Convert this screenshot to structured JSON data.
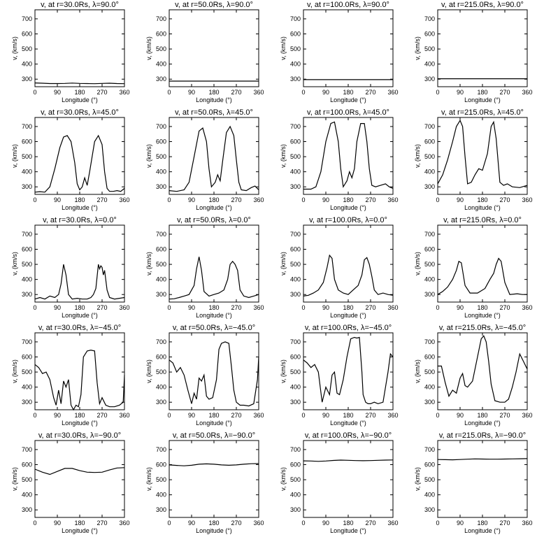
{
  "chart_data": [
    {
      "type": "line",
      "title": "v, at r=30.0Rs, λ=90.0°",
      "xlabel": "Longitude (°)",
      "ylabel": "v, (km/s)",
      "xlim": [
        0,
        360
      ],
      "ylim": [
        250,
        760
      ],
      "xticks": [
        0,
        90,
        180,
        270,
        360
      ],
      "yticks": [
        300,
        400,
        500,
        600,
        700
      ],
      "x": [
        0,
        30,
        60,
        90,
        120,
        150,
        180,
        210,
        240,
        270,
        300,
        330,
        360
      ],
      "y": [
        275,
        273,
        271,
        271,
        272,
        274,
        272,
        271,
        270,
        272,
        273,
        271,
        270
      ]
    },
    {
      "type": "line",
      "title": "v, at r=50.0Rs, λ=90.0°",
      "xlabel": "Longitude (°)",
      "ylabel": "v, (km/s)",
      "xlim": [
        0,
        360
      ],
      "ylim": [
        250,
        760
      ],
      "xticks": [
        0,
        90,
        180,
        270,
        360
      ],
      "yticks": [
        300,
        400,
        500,
        600,
        700
      ],
      "x": [
        0,
        90,
        180,
        270,
        360
      ],
      "y": [
        287,
        287,
        287,
        287,
        287
      ]
    },
    {
      "type": "line",
      "title": "v, at r=100.0Rs, λ=90.0°",
      "xlabel": "Longitude (°)",
      "ylabel": "v, (km/s)",
      "xlim": [
        0,
        360
      ],
      "ylim": [
        250,
        760
      ],
      "xticks": [
        0,
        90,
        180,
        270,
        360
      ],
      "yticks": [
        300,
        400,
        500,
        600,
        700
      ],
      "x": [
        0,
        90,
        180,
        270,
        360
      ],
      "y": [
        297,
        297,
        297,
        297,
        297
      ]
    },
    {
      "type": "line",
      "title": "v, at r=215.0Rs, λ=90.0°",
      "xlabel": "Longitude (°)",
      "ylabel": "v, (km/s)",
      "xlim": [
        0,
        360
      ],
      "ylim": [
        250,
        760
      ],
      "xticks": [
        0,
        90,
        180,
        270,
        360
      ],
      "yticks": [
        300,
        400,
        500,
        600,
        700
      ],
      "x": [
        0,
        90,
        180,
        270,
        360
      ],
      "y": [
        303,
        303,
        303,
        303,
        303
      ]
    },
    {
      "type": "line",
      "title": "v, at r=30.0Rs, λ=45.0°",
      "xlabel": "Longitude (°)",
      "ylabel": "v, (km/s)",
      "xlim": [
        0,
        360
      ],
      "ylim": [
        250,
        760
      ],
      "xticks": [
        0,
        90,
        180,
        270,
        360
      ],
      "yticks": [
        300,
        400,
        500,
        600,
        700
      ],
      "x": [
        0,
        20,
        40,
        60,
        80,
        100,
        115,
        130,
        145,
        160,
        170,
        180,
        190,
        200,
        210,
        220,
        240,
        255,
        270,
        280,
        290,
        300,
        315,
        330,
        345,
        360
      ],
      "y": [
        265,
        268,
        265,
        300,
        420,
        560,
        630,
        640,
        600,
        460,
        320,
        280,
        300,
        360,
        310,
        400,
        600,
        640,
        580,
        400,
        290,
        270,
        270,
        275,
        270,
        290
      ]
    },
    {
      "type": "line",
      "title": "v, at r=50.0Rs, λ=45.0°",
      "xlabel": "Longitude (°)",
      "ylabel": "v, (km/s)",
      "xlim": [
        0,
        360
      ],
      "ylim": [
        250,
        760
      ],
      "xticks": [
        0,
        90,
        180,
        270,
        360
      ],
      "yticks": [
        300,
        400,
        500,
        600,
        700
      ],
      "x": [
        0,
        30,
        60,
        80,
        100,
        120,
        135,
        150,
        160,
        170,
        185,
        195,
        205,
        215,
        230,
        245,
        260,
        270,
        280,
        290,
        310,
        330,
        345,
        360
      ],
      "y": [
        275,
        270,
        280,
        330,
        500,
        670,
        690,
        600,
        420,
        300,
        330,
        380,
        340,
        470,
        660,
        700,
        640,
        480,
        330,
        280,
        275,
        295,
        305,
        280
      ]
    },
    {
      "type": "line",
      "title": "v, at r=100.0Rs, λ=45.0°",
      "xlabel": "Longitude (°)",
      "ylabel": "v, (km/s)",
      "xlim": [
        0,
        360
      ],
      "ylim": [
        250,
        760
      ],
      "xticks": [
        0,
        90,
        180,
        270,
        360
      ],
      "yticks": [
        300,
        400,
        500,
        600,
        700
      ],
      "x": [
        0,
        30,
        50,
        70,
        90,
        110,
        125,
        140,
        150,
        160,
        175,
        185,
        195,
        205,
        215,
        230,
        245,
        255,
        265,
        275,
        290,
        310,
        330,
        345,
        360
      ],
      "y": [
        285,
        285,
        300,
        400,
        600,
        720,
        730,
        600,
        420,
        300,
        340,
        400,
        360,
        420,
        600,
        720,
        720,
        600,
        420,
        310,
        300,
        310,
        320,
        300,
        290
      ]
    },
    {
      "type": "line",
      "title": "v, at r=215.0Rs, λ=45.0°",
      "xlabel": "Longitude (°)",
      "ylabel": "v, (km/s)",
      "xlim": [
        0,
        360
      ],
      "ylim": [
        250,
        760
      ],
      "xticks": [
        0,
        90,
        180,
        270,
        360
      ],
      "yticks": [
        300,
        400,
        500,
        600,
        700
      ],
      "x": [
        0,
        20,
        40,
        60,
        75,
        90,
        100,
        110,
        120,
        135,
        150,
        165,
        180,
        200,
        215,
        225,
        235,
        250,
        265,
        280,
        300,
        330,
        360
      ],
      "y": [
        320,
        380,
        480,
        600,
        700,
        740,
        700,
        500,
        320,
        330,
        380,
        420,
        410,
        520,
        700,
        730,
        620,
        330,
        310,
        320,
        300,
        295,
        310
      ]
    },
    {
      "type": "line",
      "title": "v, at r=30.0Rs, λ=0.0°",
      "xlabel": "Longitude (°)",
      "ylabel": "v, (km/s)",
      "xlim": [
        0,
        360
      ],
      "ylim": [
        250,
        760
      ],
      "xticks": [
        0,
        90,
        180,
        270,
        360
      ],
      "yticks": [
        300,
        400,
        500,
        600,
        700
      ],
      "x": [
        0,
        20,
        40,
        60,
        80,
        95,
        105,
        115,
        125,
        135,
        150,
        170,
        190,
        210,
        225,
        235,
        245,
        250,
        255,
        260,
        265,
        270,
        275,
        280,
        290,
        300,
        320,
        340,
        360
      ],
      "y": [
        270,
        280,
        270,
        290,
        280,
        300,
        370,
        500,
        430,
        300,
        270,
        275,
        270,
        270,
        280,
        300,
        340,
        420,
        500,
        470,
        490,
        480,
        430,
        460,
        330,
        280,
        270,
        275,
        280
      ]
    },
    {
      "type": "line",
      "title": "v, at r=50.0Rs, λ=0.0°",
      "xlabel": "Longitude (°)",
      "ylabel": "v, (km/s)",
      "xlim": [
        0,
        360
      ],
      "ylim": [
        250,
        760
      ],
      "xticks": [
        0,
        90,
        180,
        270,
        360
      ],
      "yticks": [
        300,
        400,
        500,
        600,
        700
      ],
      "x": [
        0,
        20,
        40,
        60,
        80,
        100,
        110,
        120,
        130,
        140,
        160,
        180,
        200,
        220,
        235,
        245,
        255,
        265,
        275,
        285,
        300,
        320,
        340,
        360
      ],
      "y": [
        270,
        272,
        280,
        290,
        300,
        360,
        470,
        550,
        460,
        320,
        290,
        300,
        310,
        330,
        400,
        500,
        520,
        500,
        460,
        330,
        290,
        280,
        290,
        300
      ]
    },
    {
      "type": "line",
      "title": "v, at r=100.0Rs, λ=0.0°",
      "xlabel": "Longitude (°)",
      "ylabel": "v, (km/s)",
      "xlim": [
        0,
        360
      ],
      "ylim": [
        250,
        760
      ],
      "xticks": [
        0,
        90,
        180,
        270,
        360
      ],
      "yticks": [
        300,
        400,
        500,
        600,
        700
      ],
      "x": [
        0,
        20,
        40,
        60,
        80,
        95,
        105,
        115,
        125,
        140,
        160,
        180,
        200,
        220,
        235,
        245,
        255,
        265,
        275,
        285,
        300,
        320,
        340,
        360
      ],
      "y": [
        290,
        295,
        310,
        330,
        380,
        480,
        560,
        540,
        400,
        330,
        310,
        300,
        330,
        360,
        430,
        530,
        545,
        500,
        420,
        330,
        300,
        310,
        300,
        295
      ]
    },
    {
      "type": "line",
      "title": "v, at r=215.0Rs, λ=0.0°",
      "xlabel": "Longitude (°)",
      "ylabel": "v, (km/s)",
      "xlim": [
        0,
        360
      ],
      "ylim": [
        250,
        760
      ],
      "xticks": [
        0,
        90,
        180,
        270,
        360
      ],
      "yticks": [
        300,
        400,
        500,
        600,
        700
      ],
      "x": [
        0,
        20,
        40,
        60,
        75,
        85,
        95,
        110,
        130,
        160,
        190,
        210,
        225,
        235,
        245,
        255,
        270,
        290,
        320,
        340,
        360
      ],
      "y": [
        300,
        320,
        350,
        400,
        460,
        520,
        510,
        360,
        310,
        310,
        340,
        400,
        440,
        500,
        540,
        520,
        380,
        300,
        305,
        300,
        300
      ]
    },
    {
      "type": "line",
      "title": "v, at r=30.0Rs, λ=−45.0°",
      "xlabel": "Longitude (°)",
      "ylabel": "v, (km/s)",
      "xlim": [
        0,
        360
      ],
      "ylim": [
        250,
        760
      ],
      "xticks": [
        0,
        90,
        180,
        270,
        360
      ],
      "yticks": [
        300,
        400,
        500,
        600,
        700
      ],
      "x": [
        0,
        15,
        30,
        45,
        60,
        75,
        85,
        95,
        105,
        115,
        125,
        135,
        145,
        155,
        165,
        175,
        185,
        195,
        210,
        225,
        240,
        250,
        260,
        270,
        285,
        300,
        320,
        340,
        355,
        360
      ],
      "y": [
        550,
        530,
        490,
        500,
        450,
        330,
        280,
        380,
        290,
        440,
        400,
        450,
        280,
        250,
        280,
        270,
        350,
        600,
        640,
        645,
        640,
        430,
        290,
        330,
        280,
        270,
        270,
        280,
        300,
        480
      ]
    },
    {
      "type": "line",
      "title": "v, at r=50.0Rs, λ=−45.0°",
      "xlabel": "Longitude (°)",
      "ylabel": "v, (km/s)",
      "xlim": [
        0,
        360
      ],
      "ylim": [
        250,
        760
      ],
      "xticks": [
        0,
        90,
        180,
        270,
        360
      ],
      "yticks": [
        300,
        400,
        500,
        600,
        700
      ],
      "x": [
        0,
        15,
        30,
        45,
        60,
        75,
        90,
        100,
        110,
        120,
        130,
        140,
        150,
        160,
        175,
        190,
        200,
        210,
        225,
        240,
        250,
        260,
        270,
        285,
        300,
        320,
        340,
        355,
        360
      ],
      "y": [
        580,
        560,
        500,
        530,
        480,
        380,
        290,
        360,
        320,
        460,
        440,
        480,
        340,
        320,
        330,
        450,
        650,
        690,
        700,
        690,
        540,
        380,
        300,
        280,
        280,
        275,
        290,
        450,
        600
      ]
    },
    {
      "type": "line",
      "title": "v, at r=100.0Rs, λ=−45.0°",
      "xlabel": "Longitude (°)",
      "ylabel": "v, (km/s)",
      "xlim": [
        0,
        360
      ],
      "ylim": [
        250,
        760
      ],
      "xticks": [
        0,
        90,
        180,
        270,
        360
      ],
      "yticks": [
        300,
        400,
        500,
        600,
        700
      ],
      "x": [
        0,
        15,
        30,
        45,
        60,
        75,
        90,
        105,
        115,
        125,
        135,
        145,
        160,
        175,
        190,
        205,
        215,
        225,
        235,
        240,
        250,
        260,
        270,
        285,
        300,
        320,
        340,
        350,
        360
      ],
      "y": [
        580,
        560,
        530,
        550,
        500,
        300,
        400,
        350,
        480,
        500,
        360,
        350,
        450,
        600,
        720,
        730,
        725,
        730,
        500,
        350,
        300,
        290,
        290,
        300,
        290,
        300,
        500,
        620,
        600
      ]
    },
    {
      "type": "line",
      "title": "v, at r=215.0Rs, λ=−45.0°",
      "xlabel": "Longitude (°)",
      "ylabel": "v, (km/s)",
      "xlim": [
        0,
        360
      ],
      "ylim": [
        250,
        760
      ],
      "xticks": [
        0,
        90,
        180,
        270,
        360
      ],
      "yticks": [
        300,
        400,
        500,
        600,
        700
      ],
      "x": [
        0,
        15,
        30,
        45,
        60,
        75,
        90,
        100,
        110,
        120,
        140,
        160,
        175,
        185,
        195,
        205,
        215,
        230,
        250,
        270,
        285,
        300,
        315,
        330,
        345,
        360
      ],
      "y": [
        540,
        540,
        430,
        340,
        380,
        360,
        460,
        490,
        410,
        400,
        440,
        600,
        720,
        740,
        700,
        570,
        420,
        310,
        300,
        300,
        320,
        400,
        500,
        620,
        570,
        520
      ]
    },
    {
      "type": "line",
      "title": "v, at r=30.0Rs, λ=−90.0°",
      "xlabel": "Longitude (°)",
      "ylabel": "v, (km/s)",
      "xlim": [
        0,
        360
      ],
      "ylim": [
        250,
        760
      ],
      "xticks": [
        0,
        90,
        180,
        270,
        360
      ],
      "yticks": [
        300,
        400,
        500,
        600,
        700
      ],
      "x": [
        0,
        30,
        60,
        90,
        120,
        150,
        180,
        210,
        240,
        270,
        300,
        330,
        360
      ],
      "y": [
        570,
        550,
        535,
        555,
        575,
        575,
        560,
        550,
        548,
        550,
        565,
        578,
        580
      ]
    },
    {
      "type": "line",
      "title": "v, at r=50.0Rs, λ=−90.0°",
      "xlabel": "Longitude (°)",
      "ylabel": "v, (km/s)",
      "xlim": [
        0,
        360
      ],
      "ylim": [
        250,
        760
      ],
      "xticks": [
        0,
        90,
        180,
        270,
        360
      ],
      "yticks": [
        300,
        400,
        500,
        600,
        700
      ],
      "x": [
        0,
        30,
        60,
        90,
        120,
        150,
        180,
        210,
        240,
        270,
        300,
        330,
        360
      ],
      "y": [
        598,
        595,
        592,
        596,
        603,
        605,
        603,
        598,
        596,
        598,
        603,
        606,
        607
      ]
    },
    {
      "type": "line",
      "title": "v, at r=100.0Rs, λ=−90.0°",
      "xlabel": "Longitude (°)",
      "ylabel": "v, (km/s)",
      "xlim": [
        0,
        360
      ],
      "ylim": [
        250,
        760
      ],
      "xticks": [
        0,
        90,
        180,
        270,
        360
      ],
      "yticks": [
        300,
        400,
        500,
        600,
        700
      ],
      "x": [
        0,
        30,
        60,
        90,
        120,
        150,
        180,
        210,
        240,
        270,
        300,
        330,
        360
      ],
      "y": [
        625,
        624,
        622,
        624,
        628,
        630,
        629,
        627,
        626,
        627,
        629,
        630,
        631
      ]
    },
    {
      "type": "line",
      "title": "v, at r=215.0Rs, λ=−90.0°",
      "xlabel": "Longitude (°)",
      "ylabel": "v, (km/s)",
      "xlim": [
        0,
        360
      ],
      "ylim": [
        250,
        760
      ],
      "xticks": [
        0,
        90,
        180,
        270,
        360
      ],
      "yticks": [
        300,
        400,
        500,
        600,
        700
      ],
      "x": [
        0,
        30,
        60,
        90,
        120,
        150,
        180,
        210,
        240,
        270,
        300,
        330,
        360
      ],
      "y": [
        634,
        633,
        632,
        634,
        636,
        638,
        637,
        636,
        636,
        637,
        638,
        639,
        640
      ]
    }
  ]
}
